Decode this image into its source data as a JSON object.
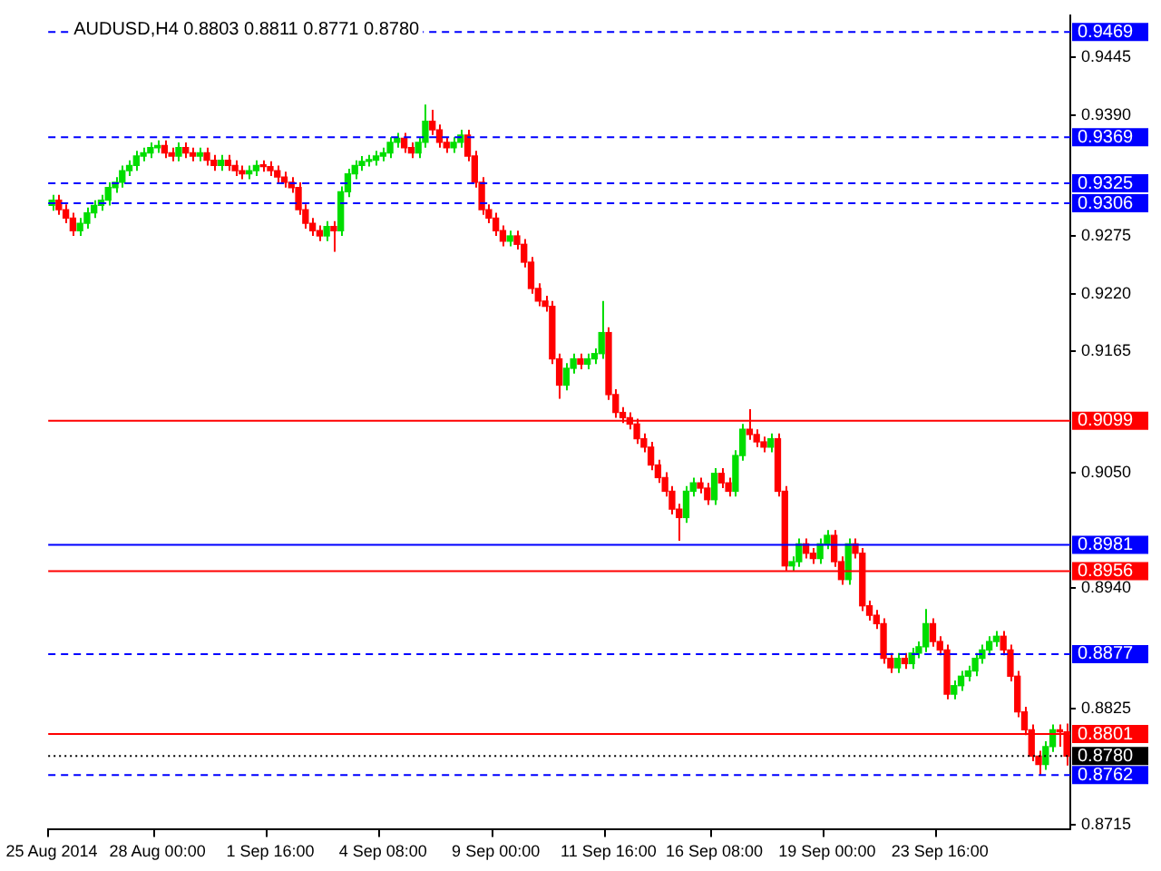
{
  "chart_data": {
    "type": "candlestick",
    "title": "AUDUSD,H4 0.8803 0.8811 0.8771 0.8780",
    "categories": [
      "25 Aug 2014",
      null,
      null,
      null,
      null,
      null,
      null,
      null,
      null,
      null,
      null,
      null,
      null,
      null,
      null,
      "28 Aug 00:00",
      null,
      null,
      null,
      null,
      null,
      null,
      null,
      null,
      null,
      null,
      null,
      null,
      null,
      null,
      null,
      "1 Sep 16:00",
      null,
      null,
      null,
      null,
      null,
      null,
      null,
      null,
      null,
      null,
      null,
      null,
      null,
      null,
      null,
      "4 Sep 08:00",
      null,
      null,
      null,
      null,
      null,
      null,
      null,
      null,
      null,
      null,
      null,
      null,
      null,
      null,
      null,
      "9 Sep 00:00",
      null,
      null,
      null,
      null,
      null,
      null,
      null,
      null,
      null,
      null,
      null,
      null,
      null,
      null,
      null,
      "11 Sep 16:00",
      null,
      null,
      null,
      null,
      null,
      null,
      null,
      null,
      null,
      null,
      null,
      null,
      null,
      null,
      "16 Sep 08:00",
      null,
      null,
      null,
      null,
      null,
      null,
      null,
      null,
      null,
      null,
      null,
      null,
      null,
      null,
      null,
      "19 Sep 00:00",
      null,
      null,
      null,
      null,
      null,
      null,
      null,
      null,
      null,
      null,
      null,
      null,
      null,
      null,
      null,
      "23 Sep 16:00",
      null,
      null,
      null,
      null,
      null,
      null,
      null,
      null,
      null,
      null,
      null,
      null,
      null,
      null,
      null,
      null,
      null,
      null
    ],
    "ohlc": [
      [
        0.9304,
        0.9314,
        0.9299,
        0.9309
      ],
      [
        0.9309,
        0.9314,
        0.9295,
        0.93
      ],
      [
        0.93,
        0.9305,
        0.9287,
        0.9292
      ],
      [
        0.9292,
        0.9297,
        0.9275,
        0.928
      ],
      [
        0.928,
        0.9292,
        0.9275,
        0.9287
      ],
      [
        0.9287,
        0.9302,
        0.9282,
        0.9297
      ],
      [
        0.9297,
        0.9309,
        0.9292,
        0.9304
      ],
      [
        0.9304,
        0.9314,
        0.9299,
        0.9309
      ],
      [
        0.9309,
        0.9326,
        0.9304,
        0.9321
      ],
      [
        0.9321,
        0.9331,
        0.9316,
        0.9326
      ],
      [
        0.9326,
        0.9342,
        0.9321,
        0.9337
      ],
      [
        0.9337,
        0.9347,
        0.9332,
        0.9342
      ],
      [
        0.9342,
        0.9356,
        0.9337,
        0.9351
      ],
      [
        0.9351,
        0.9359,
        0.9346,
        0.9354
      ],
      [
        0.9354,
        0.9364,
        0.9349,
        0.9359
      ],
      [
        0.9359,
        0.9366,
        0.9354,
        0.9361
      ],
      [
        0.9361,
        0.9366,
        0.9349,
        0.9354
      ],
      [
        0.9354,
        0.9359,
        0.9346,
        0.9351
      ],
      [
        0.9351,
        0.9364,
        0.9346,
        0.9359
      ],
      [
        0.9359,
        0.9364,
        0.9349,
        0.9354
      ],
      [
        0.9354,
        0.9359,
        0.9346,
        0.9351
      ],
      [
        0.9351,
        0.9359,
        0.9346,
        0.9354
      ],
      [
        0.9354,
        0.9359,
        0.9342,
        0.9347
      ],
      [
        0.9347,
        0.9352,
        0.9337,
        0.9342
      ],
      [
        0.9342,
        0.9352,
        0.9337,
        0.9347
      ],
      [
        0.9347,
        0.9352,
        0.9337,
        0.9342
      ],
      [
        0.9342,
        0.9347,
        0.9332,
        0.9337
      ],
      [
        0.9337,
        0.9342,
        0.9329,
        0.9334
      ],
      [
        0.9334,
        0.9342,
        0.9329,
        0.9337
      ],
      [
        0.9337,
        0.9347,
        0.9332,
        0.9342
      ],
      [
        0.9342,
        0.9347,
        0.9336,
        0.9341
      ],
      [
        0.9341,
        0.9346,
        0.9332,
        0.9337
      ],
      [
        0.9337,
        0.9342,
        0.9326,
        0.9331
      ],
      [
        0.9331,
        0.9336,
        0.9321,
        0.9326
      ],
      [
        0.9326,
        0.9331,
        0.9316,
        0.9321
      ],
      [
        0.9321,
        0.9326,
        0.9295,
        0.93
      ],
      [
        0.93,
        0.9305,
        0.9282,
        0.9287
      ],
      [
        0.9287,
        0.9292,
        0.9275,
        0.928
      ],
      [
        0.928,
        0.9285,
        0.927,
        0.9275
      ],
      [
        0.9275,
        0.9289,
        0.927,
        0.9284
      ],
      [
        0.9284,
        0.9289,
        0.926,
        0.928
      ],
      [
        0.928,
        0.9322,
        0.9275,
        0.9317
      ],
      [
        0.9317,
        0.9339,
        0.9312,
        0.9334
      ],
      [
        0.9334,
        0.9347,
        0.9329,
        0.9342
      ],
      [
        0.9342,
        0.9351,
        0.9337,
        0.9346
      ],
      [
        0.9346,
        0.9352,
        0.9341,
        0.9347
      ],
      [
        0.9347,
        0.9356,
        0.9342,
        0.9351
      ],
      [
        0.9351,
        0.9359,
        0.9346,
        0.9354
      ],
      [
        0.9354,
        0.9369,
        0.9349,
        0.9364
      ],
      [
        0.9364,
        0.9373,
        0.9359,
        0.9368
      ],
      [
        0.9368,
        0.9373,
        0.9354,
        0.9359
      ],
      [
        0.9359,
        0.9364,
        0.9349,
        0.9354
      ],
      [
        0.9354,
        0.9369,
        0.9349,
        0.9364
      ],
      [
        0.9364,
        0.94,
        0.9359,
        0.9384
      ],
      [
        0.9384,
        0.9395,
        0.9371,
        0.9376
      ],
      [
        0.9376,
        0.9381,
        0.9359,
        0.9364
      ],
      [
        0.9364,
        0.9369,
        0.9354,
        0.9359
      ],
      [
        0.9359,
        0.9369,
        0.9354,
        0.9364
      ],
      [
        0.9364,
        0.9376,
        0.9359,
        0.9371
      ],
      [
        0.9371,
        0.9376,
        0.9346,
        0.9351
      ],
      [
        0.9351,
        0.9356,
        0.9321,
        0.9326
      ],
      [
        0.9326,
        0.9331,
        0.9295,
        0.93
      ],
      [
        0.93,
        0.9305,
        0.9287,
        0.9292
      ],
      [
        0.9292,
        0.9297,
        0.9275,
        0.928
      ],
      [
        0.928,
        0.9285,
        0.9265,
        0.927
      ],
      [
        0.927,
        0.928,
        0.9265,
        0.9275
      ],
      [
        0.9275,
        0.928,
        0.9262,
        0.9267
      ],
      [
        0.9267,
        0.9272,
        0.9245,
        0.925
      ],
      [
        0.925,
        0.9255,
        0.922,
        0.9225
      ],
      [
        0.9225,
        0.923,
        0.9208,
        0.9213
      ],
      [
        0.9213,
        0.9218,
        0.9203,
        0.9208
      ],
      [
        0.9208,
        0.9213,
        0.9153,
        0.9158
      ],
      [
        0.9158,
        0.9163,
        0.912,
        0.9133
      ],
      [
        0.9133,
        0.9154,
        0.9128,
        0.9149
      ],
      [
        0.9149,
        0.9163,
        0.9144,
        0.9158
      ],
      [
        0.9158,
        0.9163,
        0.9148,
        0.9153
      ],
      [
        0.9153,
        0.9163,
        0.9148,
        0.9158
      ],
      [
        0.9158,
        0.9168,
        0.9153,
        0.9163
      ],
      [
        0.9163,
        0.9213,
        0.9158,
        0.9183
      ],
      [
        0.9183,
        0.9188,
        0.9119,
        0.9124
      ],
      [
        0.9124,
        0.9129,
        0.9102,
        0.9107
      ],
      [
        0.9107,
        0.9112,
        0.9097,
        0.9102
      ],
      [
        0.9102,
        0.9107,
        0.9091,
        0.9096
      ],
      [
        0.9096,
        0.9101,
        0.9077,
        0.9082
      ],
      [
        0.9082,
        0.9087,
        0.9069,
        0.9074
      ],
      [
        0.9074,
        0.9079,
        0.9052,
        0.9057
      ],
      [
        0.9057,
        0.9062,
        0.904,
        0.9045
      ],
      [
        0.9045,
        0.905,
        0.9027,
        0.9032
      ],
      [
        0.9032,
        0.9037,
        0.901,
        0.9015
      ],
      [
        0.9015,
        0.902,
        0.8985,
        0.9007
      ],
      [
        0.9007,
        0.9037,
        0.9002,
        0.9032
      ],
      [
        0.9032,
        0.9045,
        0.9027,
        0.904
      ],
      [
        0.904,
        0.9045,
        0.903,
        0.9035
      ],
      [
        0.9035,
        0.904,
        0.9019,
        0.9024
      ],
      [
        0.9024,
        0.9054,
        0.9019,
        0.9049
      ],
      [
        0.9049,
        0.9054,
        0.9035,
        0.904
      ],
      [
        0.904,
        0.9045,
        0.9027,
        0.9032
      ],
      [
        0.9032,
        0.9071,
        0.9027,
        0.9066
      ],
      [
        0.9066,
        0.9096,
        0.9061,
        0.9091
      ],
      [
        0.9091,
        0.911,
        0.9081,
        0.9086
      ],
      [
        0.9086,
        0.9091,
        0.9074,
        0.9079
      ],
      [
        0.9079,
        0.9084,
        0.9069,
        0.9074
      ],
      [
        0.9074,
        0.9087,
        0.9069,
        0.9082
      ],
      [
        0.9082,
        0.9087,
        0.9027,
        0.9032
      ],
      [
        0.9032,
        0.9037,
        0.8956,
        0.8961
      ],
      [
        0.8961,
        0.897,
        0.8956,
        0.8965
      ],
      [
        0.8965,
        0.8987,
        0.896,
        0.8982
      ],
      [
        0.8982,
        0.8987,
        0.8968,
        0.8973
      ],
      [
        0.8973,
        0.8978,
        0.8963,
        0.8968
      ],
      [
        0.8968,
        0.8987,
        0.8963,
        0.8982
      ],
      [
        0.8982,
        0.8995,
        0.8977,
        0.899
      ],
      [
        0.899,
        0.8995,
        0.896,
        0.8965
      ],
      [
        0.8965,
        0.897,
        0.8943,
        0.8948
      ],
      [
        0.8948,
        0.8987,
        0.8943,
        0.8982
      ],
      [
        0.8982,
        0.8987,
        0.8968,
        0.8973
      ],
      [
        0.8973,
        0.8978,
        0.8918,
        0.8923
      ],
      [
        0.8923,
        0.8928,
        0.8909,
        0.8914
      ],
      [
        0.8914,
        0.8919,
        0.8901,
        0.8906
      ],
      [
        0.8906,
        0.8911,
        0.8868,
        0.8873
      ],
      [
        0.8873,
        0.8878,
        0.8859,
        0.8864
      ],
      [
        0.8864,
        0.8878,
        0.8859,
        0.8873
      ],
      [
        0.8873,
        0.8878,
        0.8863,
        0.8868
      ],
      [
        0.8868,
        0.8883,
        0.8863,
        0.8878
      ],
      [
        0.8878,
        0.8889,
        0.8873,
        0.8884
      ],
      [
        0.8884,
        0.892,
        0.8879,
        0.8906
      ],
      [
        0.8906,
        0.8911,
        0.8884,
        0.8889
      ],
      [
        0.8889,
        0.8894,
        0.8876,
        0.8881
      ],
      [
        0.8881,
        0.8886,
        0.8834,
        0.8839
      ],
      [
        0.8839,
        0.8852,
        0.8834,
        0.8847
      ],
      [
        0.8847,
        0.8861,
        0.8842,
        0.8856
      ],
      [
        0.8856,
        0.8866,
        0.8851,
        0.8861
      ],
      [
        0.8861,
        0.8878,
        0.8856,
        0.8873
      ],
      [
        0.8873,
        0.8886,
        0.8868,
        0.8881
      ],
      [
        0.8881,
        0.8894,
        0.8876,
        0.8889
      ],
      [
        0.8889,
        0.8899,
        0.8884,
        0.8894
      ],
      [
        0.8894,
        0.8899,
        0.8876,
        0.8881
      ],
      [
        0.8881,
        0.8886,
        0.8851,
        0.8856
      ],
      [
        0.8856,
        0.8861,
        0.8817,
        0.8822
      ],
      [
        0.8822,
        0.8827,
        0.88,
        0.8805
      ],
      [
        0.8805,
        0.881,
        0.8775,
        0.878
      ],
      [
        0.878,
        0.8785,
        0.8762,
        0.8772
      ],
      [
        0.8772,
        0.8794,
        0.8767,
        0.8789
      ],
      [
        0.8789,
        0.881,
        0.8784,
        0.8805
      ],
      [
        0.8805,
        0.881,
        0.8789,
        0.8803
      ],
      [
        0.8803,
        0.8811,
        0.8771,
        0.878
      ]
    ],
    "ylim": [
      0.871,
      0.9485
    ],
    "yticks": [
      0.9445,
      {
        "value": 0.939,
        "label": "0.9390"
      },
      0.9275,
      {
        "value": 0.922,
        "label": "0.9220"
      },
      0.9165,
      {
        "value": 0.905,
        "label": "0.9050"
      },
      {
        "value": 0.894,
        "label": "0.8940"
      },
      0.8825,
      0.8715
    ],
    "ref_lines": [
      {
        "axis": "y",
        "value": 0.9469,
        "label": "0.9469",
        "color": "#0000ff",
        "line_style": "dashed"
      },
      {
        "axis": "y",
        "value": 0.9369,
        "label": "0.9369",
        "color": "#0000ff",
        "line_style": "dashed"
      },
      {
        "axis": "y",
        "value": 0.9325,
        "label": "0.9325",
        "color": "#0000ff",
        "line_style": "dashed"
      },
      {
        "axis": "y",
        "value": 0.9306,
        "label": "0.9306",
        "color": "#0000ff",
        "line_style": "dashed"
      },
      {
        "axis": "y",
        "value": 0.9099,
        "label": "0.9099",
        "color": "#ff0000",
        "line_style": "solid"
      },
      {
        "axis": "y",
        "value": 0.8981,
        "label": "0.8981",
        "color": "#0000ff",
        "line_style": "solid"
      },
      {
        "axis": "y",
        "value": 0.8956,
        "label": "0.8956",
        "color": "#ff0000",
        "line_style": "solid"
      },
      {
        "axis": "y",
        "value": 0.8877,
        "label": "0.8877",
        "color": "#0000ff",
        "line_style": "dashed"
      },
      {
        "axis": "y",
        "value": 0.8801,
        "label": "0.8801",
        "color": "#ff0000",
        "line_style": "solid"
      },
      {
        "axis": "y",
        "value": 0.878,
        "label": "0.8780",
        "color": "#000000",
        "line_style": "dotted"
      },
      {
        "axis": "y",
        "value": 0.8762,
        "label": "0.8762",
        "color": "#0000ff",
        "line_style": "dashed"
      }
    ]
  }
}
